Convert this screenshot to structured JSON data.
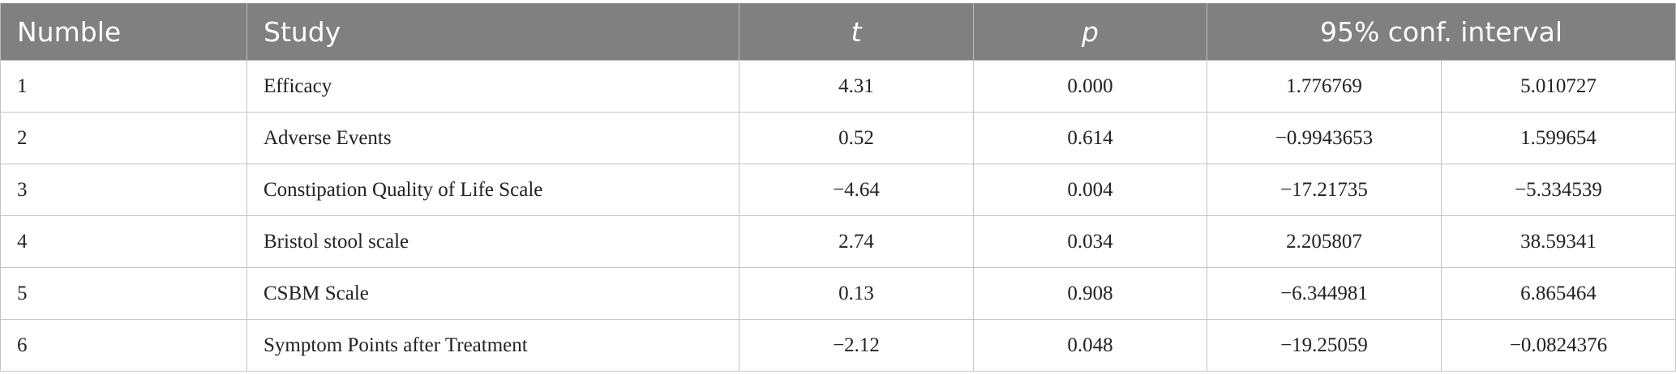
{
  "table": {
    "header": [
      "Numble",
      "Study",
      "t",
      "p",
      "95% conf. interval"
    ],
    "rows": [
      [
        "1",
        "Efficacy",
        "4.31",
        "0.000",
        "1.776769",
        "5.010727"
      ],
      [
        "2",
        "Adverse Events",
        "0.52",
        "0.614",
        "−0.9943653",
        "1.599654"
      ],
      [
        "3",
        "Constipation Quality of Life Scale",
        "−4.64",
        "0.004",
        "−17.21735",
        "−5.334539"
      ],
      [
        "4",
        "Bristol stool scale",
        "2.74",
        "0.034",
        "2.205807",
        "38.59341"
      ],
      [
        "5",
        "CSBM Scale",
        "0.13",
        "0.908",
        "−6.344981",
        "6.865464"
      ],
      [
        "6",
        "Symptom Points after Treatment",
        "−2.12",
        "0.048",
        "−19.25059",
        "−0.0824376"
      ]
    ]
  }
}
